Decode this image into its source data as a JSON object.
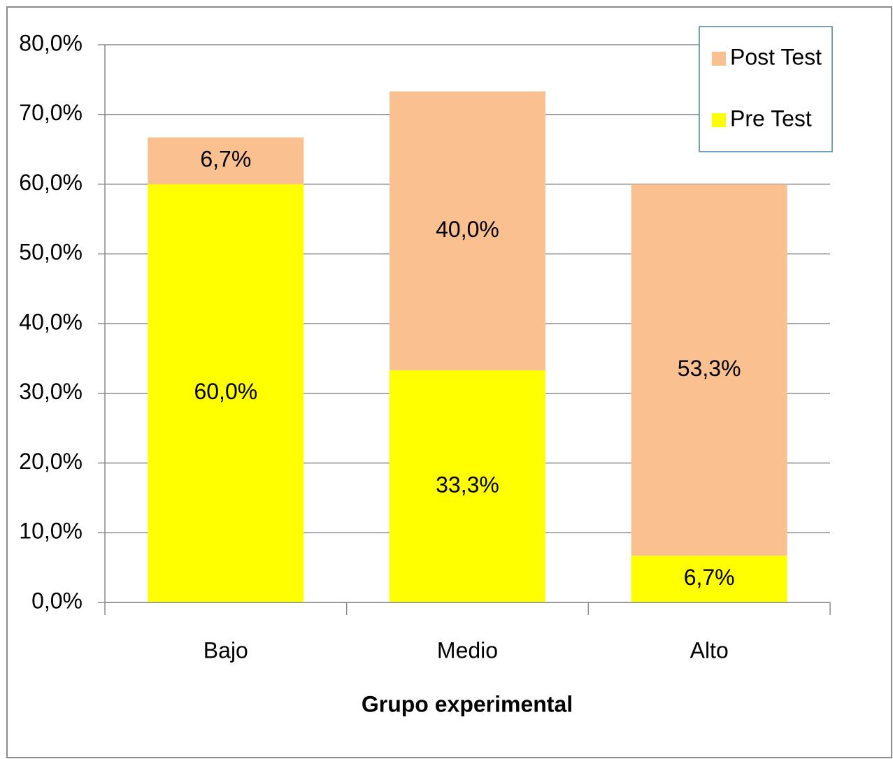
{
  "chart_data": {
    "type": "stacked_bar",
    "x_label": "Grupo experimental",
    "categories": [
      "Bajo",
      "Medio",
      "Alto"
    ],
    "series": [
      {
        "name": "Pre Test",
        "color": "#ffff00",
        "values": [
          60.0,
          33.3,
          6.7
        ],
        "value_labels": [
          "60,0%",
          "33,3%",
          "6,7%"
        ]
      },
      {
        "name": "Post Test",
        "color": "#fac090",
        "values": [
          6.7,
          40.0,
          53.3
        ],
        "value_labels": [
          "6,7%",
          "40,0%",
          "53,3%"
        ]
      }
    ],
    "ylim": [
      0,
      80
    ],
    "yticks": [
      {
        "value": 0,
        "label": "0,0%"
      },
      {
        "value": 10,
        "label": "10,0%"
      },
      {
        "value": 20,
        "label": "20,0%"
      },
      {
        "value": 30,
        "label": "30,0%"
      },
      {
        "value": 40,
        "label": "40,0%"
      },
      {
        "value": 50,
        "label": "50,0%"
      },
      {
        "value": 60,
        "label": "60,0%"
      },
      {
        "value": 70,
        "label": "70,0%"
      },
      {
        "value": 80,
        "label": "80,0%"
      }
    ],
    "grid": true,
    "legend": "top-right"
  }
}
